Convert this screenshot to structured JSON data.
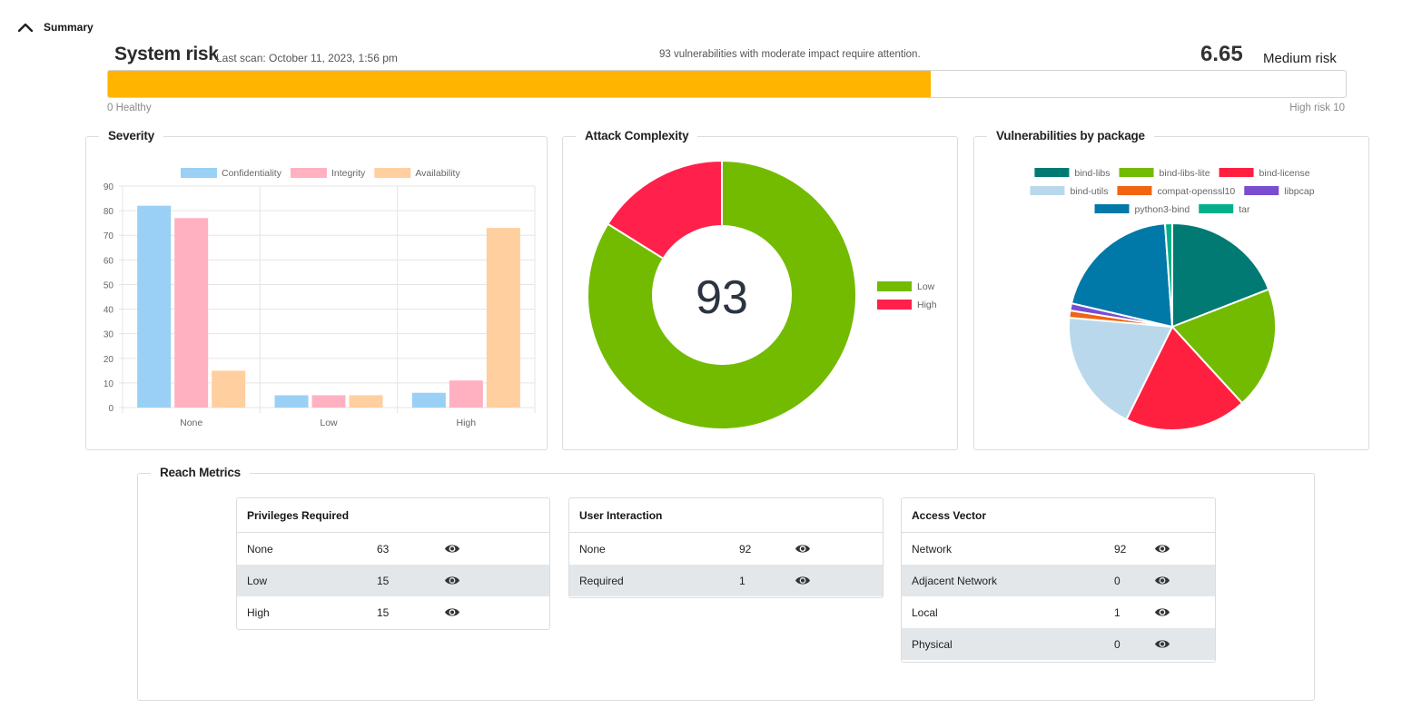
{
  "summary": {
    "label": "Summary"
  },
  "risk": {
    "title": "System risk",
    "last_scan": "Last scan: October 11, 2023, 1:56 pm",
    "message": "93 vulnerabilities with moderate impact require attention.",
    "score": "6.65",
    "score_value": 6.65,
    "score_max": 10,
    "level": "Medium risk",
    "min_label": "0 Healthy",
    "max_label": "High risk 10",
    "bar_color": "#ffb400"
  },
  "severity_card": {
    "title": "Severity"
  },
  "attack_card": {
    "title": "Attack Complexity",
    "center_value": "93"
  },
  "packages_card": {
    "title": "Vulnerabilities by package"
  },
  "chart_data": [
    {
      "type": "bar",
      "title": "Severity",
      "categories": [
        "None",
        "Low",
        "High"
      ],
      "series": [
        {
          "name": "Confidentiality",
          "values": [
            82,
            5,
            6
          ],
          "color": "#9ad0f5"
        },
        {
          "name": "Integrity",
          "values": [
            77,
            5,
            11
          ],
          "color": "#ffb1c1"
        },
        {
          "name": "Availability",
          "values": [
            15,
            5,
            73
          ],
          "color": "#ffcf9f"
        }
      ],
      "ylim": [
        0,
        90
      ],
      "yticks": [
        "0",
        "10",
        "20",
        "30",
        "40",
        "50",
        "60",
        "70",
        "80",
        "90"
      ],
      "grid": true,
      "legend": "top"
    },
    {
      "type": "pie",
      "donut": true,
      "title": "Attack Complexity",
      "labels": [
        "Low",
        "High"
      ],
      "values": [
        78,
        15
      ],
      "colors": [
        "#73bb00",
        "#ff204b"
      ],
      "legend": "right"
    },
    {
      "type": "pie",
      "title": "Vulnerabilities by package",
      "labels": [
        "bind-libs",
        "bind-libs-lite",
        "bind-license",
        "bind-utils",
        "compat-openssl10",
        "libpcap",
        "python3-bind",
        "tar"
      ],
      "values": [
        17,
        17,
        17,
        17,
        1,
        1,
        18,
        1
      ],
      "colors": [
        "#007a73",
        "#73bb00",
        "#ff2040",
        "#bad8eb",
        "#f06412",
        "#7a4cd0",
        "#0078a8",
        "#00b08a"
      ],
      "legend": "top"
    }
  ],
  "reach": {
    "title": "Reach Metrics",
    "tables": [
      {
        "title": "Privileges Required",
        "rows": [
          {
            "label": "None",
            "value": "63"
          },
          {
            "label": "Low",
            "value": "15"
          },
          {
            "label": "High",
            "value": "15"
          }
        ]
      },
      {
        "title": "User Interaction",
        "rows": [
          {
            "label": "None",
            "value": "92"
          },
          {
            "label": "Required",
            "value": "1"
          }
        ]
      },
      {
        "title": "Access Vector",
        "rows": [
          {
            "label": "Network",
            "value": "92"
          },
          {
            "label": "Adjacent Network",
            "value": "0"
          },
          {
            "label": "Local",
            "value": "1"
          },
          {
            "label": "Physical",
            "value": "0"
          }
        ]
      }
    ]
  },
  "icons": {
    "toggle": "chevron-up-icon",
    "row_action": "eye-icon"
  }
}
